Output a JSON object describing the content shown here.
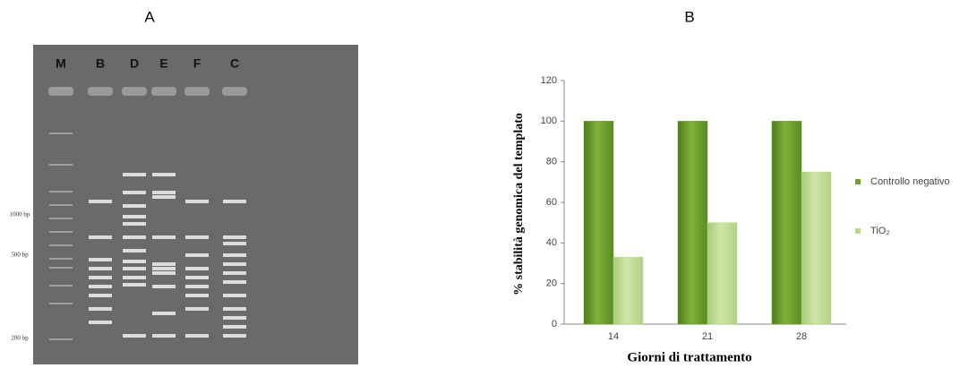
{
  "panels": {
    "a": {
      "label": "A",
      "lanes": [
        "M",
        "B",
        "D",
        "E",
        "F",
        "C"
      ],
      "markers": [
        "1000 bp",
        "500 bp",
        "200 bp"
      ]
    },
    "b": {
      "label": "B"
    }
  },
  "chart_data": {
    "type": "bar",
    "y_label": "% stabilità genomica del templato",
    "x_label": "Giorni di trattamento",
    "categories": [
      "14",
      "21",
      "28"
    ],
    "series": [
      {
        "name": "Controllo negativo",
        "color": "#6f9e2f",
        "values": [
          100,
          100,
          100
        ]
      },
      {
        "name": "TiO₂",
        "color": "#b9d98a",
        "values": [
          33,
          50,
          75
        ]
      }
    ],
    "ylim": [
      0,
      120
    ],
    "yticks": [
      0,
      20,
      40,
      60,
      80,
      100,
      120
    ],
    "grid": false,
    "legend": "right"
  }
}
